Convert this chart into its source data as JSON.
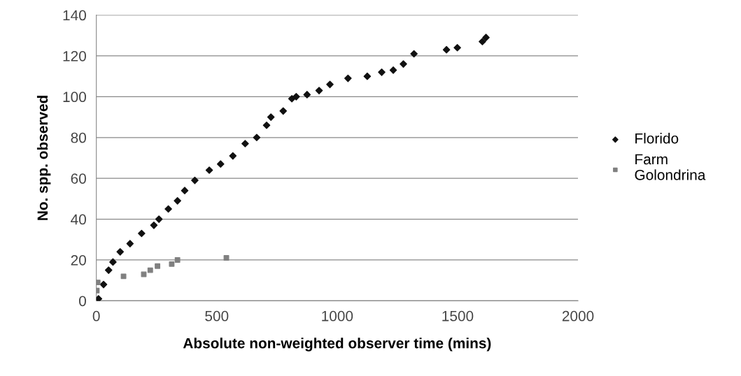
{
  "chart_data": {
    "type": "scatter",
    "xlabel": "Absolute non-weighted observer time (mins)",
    "ylabel": "No. spp. observed",
    "series": [
      {
        "name": "Florido",
        "color": "#111111",
        "marker": "diamond",
        "x": [
          9,
          30,
          51,
          69,
          99,
          140,
          188,
          239,
          260,
          299,
          337,
          367,
          409,
          469,
          516,
          567,
          618,
          666,
          707,
          725,
          776,
          812,
          830,
          875,
          925,
          970,
          1045,
          1125,
          1185,
          1233,
          1275,
          1319,
          1454,
          1499,
          1603,
          1618
        ],
        "values": [
          1,
          8,
          15,
          19,
          24,
          28,
          33,
          37,
          40,
          45,
          49,
          54,
          59,
          64,
          67,
          71,
          77,
          80,
          86,
          90,
          93,
          99,
          100,
          101,
          103,
          106,
          109,
          110,
          112,
          113,
          116,
          121,
          123,
          124,
          127,
          129
        ]
      },
      {
        "name": "Farm\nGolondrina",
        "color": "#808080",
        "marker": "square",
        "x": [
          2,
          6,
          113,
          197,
          224,
          254,
          313,
          337,
          540
        ],
        "values": [
          5,
          9,
          12,
          13,
          15,
          17,
          18,
          20,
          21
        ]
      }
    ],
    "xlim": [
      0,
      2000
    ],
    "xticks": [
      0,
      500,
      1000,
      1500,
      2000
    ],
    "ylim": [
      0,
      140
    ],
    "yticks": [
      0,
      20,
      40,
      60,
      80,
      100,
      120,
      140
    ],
    "grid": "y",
    "legend": "right"
  }
}
